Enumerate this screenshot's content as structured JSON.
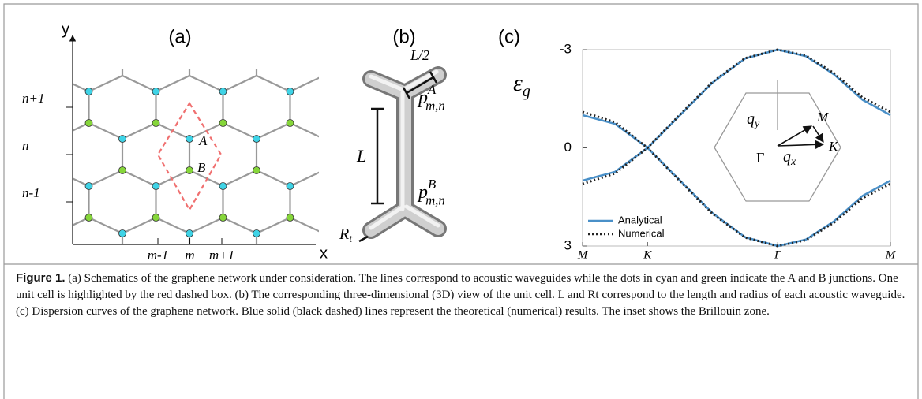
{
  "panel_a": {
    "label": "(a)",
    "x_axis": "x",
    "y_axis": "y",
    "rows": [
      "n+1",
      "n",
      "n-1"
    ],
    "columns": [
      "m-1",
      "m",
      "m+1"
    ],
    "sites": [
      "A",
      "B"
    ]
  },
  "panel_b": {
    "label": "(b)",
    "half_length": "L/2",
    "length": "L",
    "radius": {
      "symbol": "R",
      "sub": "t"
    },
    "site_a": {
      "symbol": "p",
      "sup": "A",
      "sub": "m,n"
    },
    "site_b": {
      "symbol": "p",
      "sup": "B",
      "sub": "m,n"
    }
  },
  "chart_data": {
    "type": "line",
    "label": "(c)",
    "ylabel": "ε",
    "ylabel_sub": "g",
    "x": [
      0,
      0.106,
      0.211,
      0.317,
      0.423,
      0.528,
      0.634,
      0.726,
      0.817,
      0.909,
      1
    ],
    "xlim": [
      0,
      1
    ],
    "xticks": [
      {
        "value": 0,
        "label": "M"
      },
      {
        "value": 0.211,
        "label": "K"
      },
      {
        "value": 0.634,
        "label": "Γ"
      },
      {
        "value": 1,
        "label": "M"
      }
    ],
    "ylim": [
      3,
      -3
    ],
    "yticks": [
      -3,
      0,
      3
    ],
    "series": [
      {
        "name": "Analytical",
        "color": "#4a90c8",
        "dash": false,
        "bands": [
          [
            -1,
            -0.73,
            0,
            -1,
            -2,
            -2.73,
            -3,
            -2.8,
            -2.24,
            -1.47,
            -1
          ],
          [
            1,
            0.73,
            0,
            1,
            2,
            2.73,
            3,
            2.8,
            2.24,
            1.47,
            1
          ]
        ]
      },
      {
        "name": "Numerical",
        "color": "#222222",
        "dash": true,
        "bands": [
          [
            -1.1,
            -0.78,
            0,
            -1.02,
            -2.02,
            -2.74,
            -3,
            -2.82,
            -2.28,
            -1.54,
            -1.1
          ],
          [
            1.1,
            0.78,
            0,
            1.02,
            2.02,
            2.74,
            3,
            2.82,
            2.28,
            1.54,
            1.1
          ]
        ]
      }
    ],
    "legend": "lower left"
  },
  "inset": {
    "q_y": {
      "symbol": "q",
      "sub": "y"
    },
    "q_x": {
      "symbol": "q",
      "sub": "x"
    },
    "points": [
      "M",
      "K",
      "Γ"
    ]
  },
  "caption": {
    "label": "Figure 1.",
    "text": "(a) Schematics of the graphene network under consideration. The lines correspond to acoustic waveguides while the dots in cyan and green indicate the A and B junctions. One unit cell is highlighted by the red dashed box. (b) The corresponding three-dimensional (3D) view of the unit cell. L and Rt correspond to the length and radius of each acoustic waveguide. (c) Dispersion curves of the graphene network. Blue solid (black dashed) lines represent the theoretical (numerical) results. The inset shows the Brillouin zone."
  }
}
